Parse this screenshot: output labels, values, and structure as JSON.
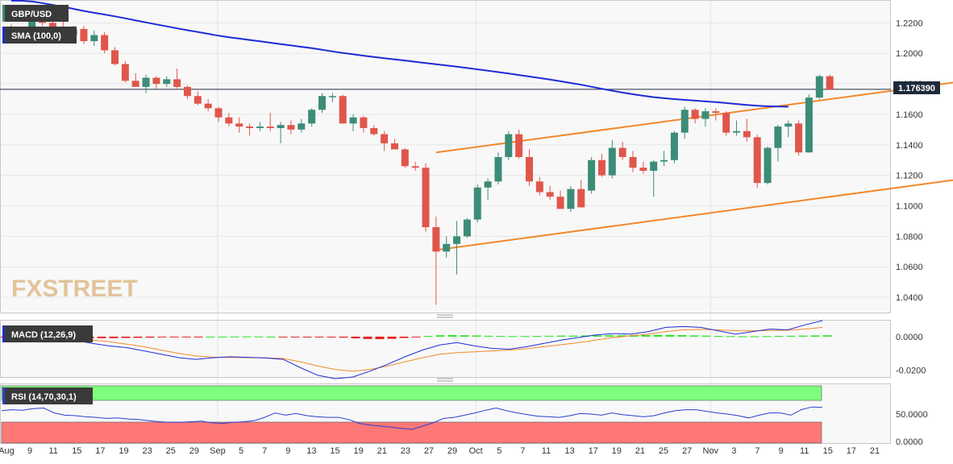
{
  "symbol_label": "GBP/USD",
  "sma_label": "SMA (100,0)",
  "macd_label": "MACD (12,26,9)",
  "rsi_label": "RSI (14,70,30,1)",
  "watermark_logo": "FXSTREET",
  "price_badge": "1.176390",
  "price_axis_ticks": [
    "1.2200",
    "1.2000",
    "1.1800",
    "1.1600",
    "1.1400",
    "1.1200",
    "1.1000",
    "1.0800",
    "1.0600",
    "1.0400"
  ],
  "macd_axis_ticks": [
    "0.0000",
    "-0.0200"
  ],
  "rsi_axis_ticks": [
    "50.0000",
    "0.0000"
  ],
  "date_ticks": [
    "Aug",
    "9",
    "11",
    "15",
    "17",
    "19",
    "23",
    "25",
    "29",
    "Sep",
    "5",
    "7",
    "9",
    "13",
    "15",
    "19",
    "21",
    "23",
    "27",
    "29",
    "Oct",
    "5",
    "7",
    "11",
    "13",
    "17",
    "19",
    "21",
    "25",
    "27",
    "Nov",
    "3",
    "7",
    "9",
    "11",
    "15",
    "17",
    "21"
  ],
  "colors": {
    "bull": "#3c8c78",
    "bear": "#e0564b",
    "sma": "#1f2bd6",
    "channel": "#f0892b",
    "macd_line": "#1f2bd6",
    "signal_line": "#f0892b",
    "hist_pos": "#22e622",
    "hist_neg": "#e61e1e",
    "rsi_line": "#2a3fd0",
    "overbought": "#7dff7d",
    "oversold": "#ff7878"
  },
  "chart_data": [
    {
      "type": "candlestick",
      "title": "GBP/USD",
      "ylim": [
        1.03,
        1.235
      ],
      "grid": true,
      "series": [
        {
          "name": "SMA (100,0)",
          "type": "line",
          "values": [
            1.2345,
            1.2345,
            1.234,
            1.233,
            1.2318,
            1.2306,
            1.2292,
            1.2278,
            1.2266,
            1.2255,
            1.2243,
            1.223,
            1.2216,
            1.2203,
            1.219,
            1.2177,
            1.2164,
            1.2152,
            1.214,
            1.2128,
            1.2116,
            1.2106,
            1.2097,
            1.2088,
            1.2079,
            1.207,
            1.2061,
            1.2052,
            1.2043,
            1.2034,
            1.2024,
            1.2013,
            1.2003,
            1.1994,
            1.1985,
            1.1976,
            1.1968,
            1.196,
            1.1953,
            1.1945,
            1.1937,
            1.1929,
            1.1921,
            1.1913,
            1.1904,
            1.1895,
            1.1886,
            1.1877,
            1.1868,
            1.1858,
            1.1848,
            1.1838,
            1.1828,
            1.1817,
            1.1806,
            1.1794,
            1.1781,
            1.1768,
            1.1755,
            1.1743,
            1.1732,
            1.1722,
            1.1713,
            1.1706,
            1.17,
            1.1695,
            1.169,
            1.1685,
            1.168,
            1.1674,
            1.1668,
            1.1662,
            1.1657,
            1.1653,
            1.1651,
            1.165
          ]
        },
        {
          "name": "Candles",
          "type": "ohlc",
          "ohlc": [
            [
              1.214,
              1.219,
              1.208,
              1.21
            ],
            [
              1.21,
              1.216,
              1.208,
              1.214
            ],
            [
              1.214,
              1.227,
              1.212,
              1.224
            ],
            [
              1.224,
              1.229,
              1.218,
              1.22
            ],
            [
              1.22,
              1.224,
              1.213,
              1.215
            ],
            [
              1.215,
              1.222,
              1.211,
              1.212
            ],
            [
              1.212,
              1.218,
              1.209,
              1.216
            ],
            [
              1.216,
              1.218,
              1.206,
              1.208
            ],
            [
              1.208,
              1.215,
              1.205,
              1.212
            ],
            [
              1.212,
              1.214,
              1.2,
              1.202
            ],
            [
              1.202,
              1.204,
              1.192,
              1.193
            ],
            [
              1.193,
              1.195,
              1.181,
              1.182
            ],
            [
              1.182,
              1.187,
              1.178,
              1.178
            ],
            [
              1.178,
              1.186,
              1.174,
              1.184
            ],
            [
              1.184,
              1.185,
              1.177,
              1.18
            ],
            [
              1.18,
              1.185,
              1.178,
              1.183
            ],
            [
              1.183,
              1.19,
              1.177,
              1.178
            ],
            [
              1.178,
              1.179,
              1.17,
              1.172
            ],
            [
              1.172,
              1.175,
              1.166,
              1.167
            ],
            [
              1.167,
              1.17,
              1.162,
              1.164
            ],
            [
              1.164,
              1.165,
              1.155,
              1.158
            ],
            [
              1.158,
              1.161,
              1.152,
              1.154
            ],
            [
              1.154,
              1.158,
              1.148,
              1.152
            ],
            [
              1.152,
              1.154,
              1.146,
              1.151
            ],
            [
              1.151,
              1.155,
              1.149,
              1.152
            ],
            [
              1.152,
              1.161,
              1.149,
              1.151
            ],
            [
              1.151,
              1.155,
              1.141,
              1.153
            ],
            [
              1.153,
              1.156,
              1.147,
              1.15
            ],
            [
              1.15,
              1.157,
              1.148,
              1.154
            ],
            [
              1.154,
              1.164,
              1.152,
              1.163
            ],
            [
              1.163,
              1.174,
              1.161,
              1.172
            ],
            [
              1.172,
              1.174,
              1.168,
              1.172
            ],
            [
              1.172,
              1.173,
              1.154,
              1.154
            ],
            [
              1.154,
              1.16,
              1.149,
              1.158
            ],
            [
              1.158,
              1.159,
              1.148,
              1.151
            ],
            [
              1.151,
              1.153,
              1.146,
              1.147
            ],
            [
              1.147,
              1.149,
              1.136,
              1.141
            ],
            [
              1.141,
              1.144,
              1.137,
              1.137
            ],
            [
              1.137,
              1.138,
              1.125,
              1.126
            ],
            [
              1.126,
              1.129,
              1.123,
              1.125
            ],
            [
              1.125,
              1.128,
              1.083,
              1.086
            ],
            [
              1.086,
              1.093,
              1.035,
              1.07
            ],
            [
              1.07,
              1.08,
              1.066,
              1.075
            ],
            [
              1.075,
              1.09,
              1.055,
              1.08
            ],
            [
              1.08,
              1.092,
              1.079,
              1.091
            ],
            [
              1.091,
              1.114,
              1.089,
              1.112
            ],
            [
              1.112,
              1.118,
              1.104,
              1.116
            ],
            [
              1.116,
              1.135,
              1.114,
              1.132
            ],
            [
              1.132,
              1.149,
              1.13,
              1.147
            ],
            [
              1.147,
              1.15,
              1.131,
              1.132
            ],
            [
              1.132,
              1.137,
              1.113,
              1.116
            ],
            [
              1.116,
              1.119,
              1.107,
              1.109
            ],
            [
              1.109,
              1.113,
              1.104,
              1.106
            ],
            [
              1.106,
              1.11,
              1.099,
              1.098
            ],
            [
              1.098,
              1.113,
              1.096,
              1.111
            ],
            [
              1.111,
              1.117,
              1.1,
              1.099
            ],
            [
              1.11,
              1.132,
              1.108,
              1.13
            ],
            [
              1.13,
              1.134,
              1.119,
              1.12
            ],
            [
              1.12,
              1.143,
              1.118,
              1.138
            ],
            [
              1.138,
              1.142,
              1.13,
              1.132
            ],
            [
              1.132,
              1.136,
              1.122,
              1.125
            ],
            [
              1.125,
              1.129,
              1.121,
              1.123
            ],
            [
              1.123,
              1.13,
              1.106,
              1.129
            ],
            [
              1.129,
              1.136,
              1.126,
              1.13
            ],
            [
              1.13,
              1.149,
              1.128,
              1.148
            ],
            [
              1.148,
              1.165,
              1.144,
              1.163
            ],
            [
              1.163,
              1.164,
              1.154,
              1.157
            ],
            [
              1.157,
              1.164,
              1.152,
              1.162
            ],
            [
              1.162,
              1.164,
              1.156,
              1.161
            ],
            [
              1.161,
              1.162,
              1.146,
              1.148
            ],
            [
              1.148,
              1.156,
              1.146,
              1.149
            ],
            [
              1.149,
              1.157,
              1.142,
              1.145
            ],
            [
              1.145,
              1.147,
              1.112,
              1.115
            ],
            [
              1.115,
              1.139,
              1.114,
              1.138
            ],
            [
              1.138,
              1.153,
              1.129,
              1.152
            ],
            [
              1.152,
              1.156,
              1.145,
              1.154
            ],
            [
              1.154,
              1.156,
              1.133,
              1.135
            ],
            [
              1.135,
              1.173,
              1.135,
              1.171
            ],
            [
              1.171,
              1.186,
              1.17,
              1.185
            ],
            [
              1.185,
              1.186,
              1.176,
              1.1764
            ]
          ]
        }
      ],
      "annotations": {
        "horizontal_line": 1.17639,
        "upper_channel": [
          [
            41,
            1.135
          ],
          [
            103,
            1.192
          ]
        ],
        "lower_channel": [
          [
            41,
            1.071
          ],
          [
            103,
            1.128
          ]
        ]
      }
    },
    {
      "type": "line",
      "title": "MACD (12,26,9)",
      "ylim": [
        -0.024,
        0.01
      ],
      "series": [
        {
          "name": "MACD",
          "values": [
            0.0005,
            0.0003,
            0.0001,
            -0.0005,
            -0.002,
            -0.004,
            -0.0055,
            -0.0065,
            -0.0085,
            -0.0105,
            -0.0125,
            -0.0135,
            -0.0125,
            -0.012,
            -0.0123,
            -0.0127,
            -0.0135,
            -0.0185,
            -0.023,
            -0.025,
            -0.024,
            -0.0205,
            -0.0165,
            -0.012,
            -0.008,
            -0.005,
            -0.0035,
            -0.0055,
            -0.007,
            -0.0075,
            -0.006,
            -0.004,
            -0.002,
            -0.0005,
            0.001,
            0.0018,
            0.0015,
            0.003,
            0.0055,
            0.006,
            0.0055,
            0.0035,
            0.0015,
            0.003,
            0.0045,
            0.004,
            0.007,
            0.0095
          ]
        },
        {
          "name": "Signal",
          "values": [
            0.0003,
            0.0002,
            0.0001,
            -0.0003,
            -0.001,
            -0.002,
            -0.003,
            -0.0045,
            -0.006,
            -0.008,
            -0.01,
            -0.0115,
            -0.0122,
            -0.0124,
            -0.0125,
            -0.0126,
            -0.013,
            -0.015,
            -0.0175,
            -0.0195,
            -0.0205,
            -0.0195,
            -0.0175,
            -0.015,
            -0.0125,
            -0.0105,
            -0.0095,
            -0.009,
            -0.0085,
            -0.008,
            -0.0072,
            -0.006,
            -0.0048,
            -0.0035,
            -0.002,
            -0.0005,
            0.0005,
            0.0015,
            0.003,
            0.004,
            0.0043,
            0.004,
            0.0035,
            0.0035,
            0.0037,
            0.0038,
            0.0045,
            0.0055
          ]
        },
        {
          "name": "Histogram",
          "type": "bar",
          "values": [
            -0.0002,
            -0.0004,
            -0.0006,
            -0.0008,
            -0.0009,
            -0.001,
            -0.001,
            -0.001,
            -0.0009,
            -0.0009,
            -0.0008,
            -0.0007,
            -0.0006,
            -0.0004,
            -0.0003,
            -0.0002,
            -0.0001,
            0.0,
            0.0,
            0.0001,
            0.0001,
            0.0001,
            0.0,
            -0.0001,
            -0.0002,
            -0.0002,
            -0.0003,
            -0.0004,
            -0.0006,
            -0.001,
            -0.0014,
            -0.0015,
            -0.0013,
            -0.0008,
            -0.0003,
            0.0004,
            0.0008,
            0.0009,
            0.0008,
            0.0007,
            0.0005,
            0.0004,
            0.0003,
            0.0003,
            0.0004,
            0.0005,
            0.0006,
            0.0006,
            0.0007,
            0.0007,
            0.0008,
            0.0008,
            0.0008,
            0.0009,
            0.001,
            0.001,
            0.0009,
            0.0007,
            0.0006,
            0.0004,
            0.0003,
            0.0002,
            0.0002,
            0.0003,
            0.0004,
            0.0005,
            0.0006,
            0.0007,
            0.0008
          ]
        }
      ]
    },
    {
      "type": "line",
      "title": "RSI (14,70,30,1)",
      "ylim": [
        0,
        100
      ],
      "bands": {
        "overbought": 70,
        "oversold": 30
      },
      "series": [
        {
          "name": "RSI",
          "values": [
            56,
            58,
            57,
            60,
            61,
            52,
            48,
            47,
            45,
            44,
            42,
            43,
            41,
            40,
            38,
            36,
            35,
            35,
            36,
            37,
            34,
            33,
            35,
            36,
            38,
            44,
            52,
            48,
            51,
            47,
            45,
            44,
            44,
            40,
            33,
            30,
            28,
            26,
            24,
            22,
            28,
            34,
            42,
            44,
            48,
            52,
            57,
            61,
            56,
            52,
            49,
            46,
            45,
            44,
            47,
            51,
            50,
            48,
            52,
            49,
            47,
            45,
            47,
            52,
            56,
            58,
            58,
            55,
            52,
            50,
            47,
            43,
            48,
            52,
            52,
            48,
            58,
            63,
            62
          ]
        }
      ]
    }
  ],
  "x_axis_ticks_scaled": true
}
